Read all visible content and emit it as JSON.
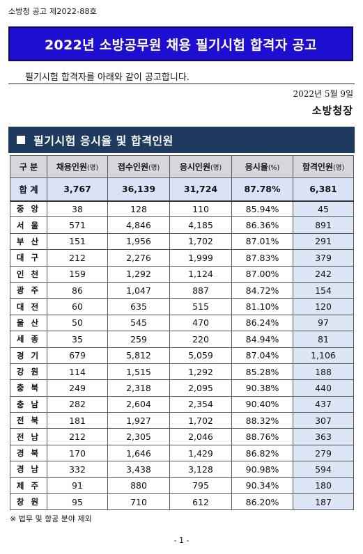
{
  "notice_number": "소방청 공고 제2022-88호",
  "title": "2022년 소방공무원 채용 필기시험 합격자 공고",
  "intro": "필기시험 합격자를 아래와 같이 공고합니다.",
  "date": "2022년 5월 9일",
  "issuer": "소방청장",
  "section_title": "필기시험 응시율 및 합격인원",
  "table": {
    "headers": [
      {
        "label": "구 분",
        "unit": ""
      },
      {
        "label": "채용인원",
        "unit": "(명)"
      },
      {
        "label": "접수인원",
        "unit": "(명)"
      },
      {
        "label": "응시인원",
        "unit": "(명)"
      },
      {
        "label": "응시율",
        "unit": "(%)"
      },
      {
        "label": "합격인원",
        "unit": "(명)"
      }
    ],
    "total": {
      "region": "합 계",
      "recruit": "3,767",
      "applied": "36,139",
      "tested": "31,724",
      "rate": "87.78%",
      "passed": "6,381"
    },
    "rows": [
      {
        "region": "중 앙",
        "recruit": "38",
        "applied": "128",
        "tested": "110",
        "rate": "85.94%",
        "passed": "45"
      },
      {
        "region": "서 울",
        "recruit": "571",
        "applied": "4,846",
        "tested": "4,185",
        "rate": "86.36%",
        "passed": "891"
      },
      {
        "region": "부 산",
        "recruit": "151",
        "applied": "1,956",
        "tested": "1,702",
        "rate": "87.01%",
        "passed": "291"
      },
      {
        "region": "대 구",
        "recruit": "212",
        "applied": "2,276",
        "tested": "1,999",
        "rate": "87.83%",
        "passed": "379"
      },
      {
        "region": "인 천",
        "recruit": "159",
        "applied": "1,292",
        "tested": "1,124",
        "rate": "87.00%",
        "passed": "242"
      },
      {
        "region": "광 주",
        "recruit": "86",
        "applied": "1,047",
        "tested": "887",
        "rate": "84.72%",
        "passed": "154"
      },
      {
        "region": "대 전",
        "recruit": "60",
        "applied": "635",
        "tested": "515",
        "rate": "81.10%",
        "passed": "120"
      },
      {
        "region": "울 산",
        "recruit": "50",
        "applied": "545",
        "tested": "470",
        "rate": "86.24%",
        "passed": "97"
      },
      {
        "region": "세 종",
        "recruit": "35",
        "applied": "259",
        "tested": "220",
        "rate": "84.94%",
        "passed": "81"
      },
      {
        "region": "경 기",
        "recruit": "679",
        "applied": "5,812",
        "tested": "5,059",
        "rate": "87.04%",
        "passed": "1,106"
      },
      {
        "region": "강 원",
        "recruit": "114",
        "applied": "1,515",
        "tested": "1,292",
        "rate": "85.28%",
        "passed": "188"
      },
      {
        "region": "충 북",
        "recruit": "249",
        "applied": "2,318",
        "tested": "2,095",
        "rate": "90.38%",
        "passed": "440"
      },
      {
        "region": "충 남",
        "recruit": "282",
        "applied": "2,604",
        "tested": "2,354",
        "rate": "90.40%",
        "passed": "437"
      },
      {
        "region": "전 북",
        "recruit": "181",
        "applied": "1,927",
        "tested": "1,702",
        "rate": "88.32%",
        "passed": "307"
      },
      {
        "region": "전 남",
        "recruit": "212",
        "applied": "2,305",
        "tested": "2,046",
        "rate": "88.76%",
        "passed": "363"
      },
      {
        "region": "경 북",
        "recruit": "170",
        "applied": "1,646",
        "tested": "1,429",
        "rate": "86.82%",
        "passed": "279"
      },
      {
        "region": "경 남",
        "recruit": "332",
        "applied": "3,438",
        "tested": "3,128",
        "rate": "90.98%",
        "passed": "594"
      },
      {
        "region": "제 주",
        "recruit": "91",
        "applied": "880",
        "tested": "795",
        "rate": "90.34%",
        "passed": "180"
      },
      {
        "region": "창 원",
        "recruit": "95",
        "applied": "710",
        "tested": "612",
        "rate": "86.20%",
        "passed": "187"
      }
    ]
  },
  "footnote": "※ 법무 및 항공 분야 제외",
  "page_number": "- 1 -",
  "colors": {
    "title_bg": "#1e0fd0",
    "section_bg": "#1f3a5f",
    "header_bg": "#d5d7dc",
    "total_bg": "#d9e3f5",
    "pass_col_bg": "#dde6f7"
  }
}
